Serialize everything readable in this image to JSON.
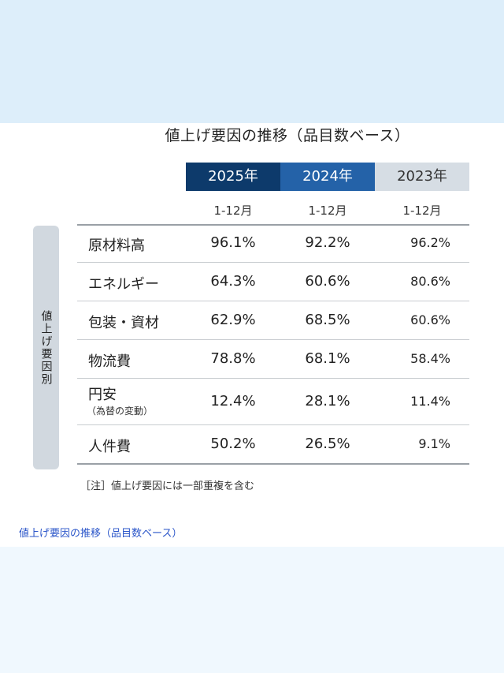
{
  "title": "値上げ要因の推移（品目数ベース）",
  "side_label": "値上げ要因別",
  "columns": [
    {
      "year": "2025年",
      "period": "1-12月",
      "color": "#0d3a6b"
    },
    {
      "year": "2024年",
      "period": "1-12月",
      "color": "#2462a8"
    },
    {
      "year": "2023年",
      "period": "1-12月",
      "color": "#d6dde4"
    }
  ],
  "rows": [
    {
      "label": "原材料高",
      "sub": "",
      "values": [
        "96.1%",
        "92.2%",
        "96.2%"
      ]
    },
    {
      "label": "エネルギー",
      "sub": "",
      "values": [
        "64.3%",
        "60.6%",
        "80.6%"
      ]
    },
    {
      "label": "包装・資材",
      "sub": "",
      "values": [
        "62.9%",
        "68.5%",
        "60.6%"
      ]
    },
    {
      "label": "物流費",
      "sub": "",
      "values": [
        "78.8%",
        "68.1%",
        "58.4%"
      ]
    },
    {
      "label": "円安",
      "sub": "（為替の変動）",
      "values": [
        "12.4%",
        "28.1%",
        "11.4%"
      ]
    },
    {
      "label": "人件費",
      "sub": "",
      "values": [
        "50.2%",
        "26.5%",
        "9.1%"
      ]
    }
  ],
  "note": "［注］値上げ要因には一部重複を含む",
  "caption": "値上げ要因の推移（品目数ベース）"
}
